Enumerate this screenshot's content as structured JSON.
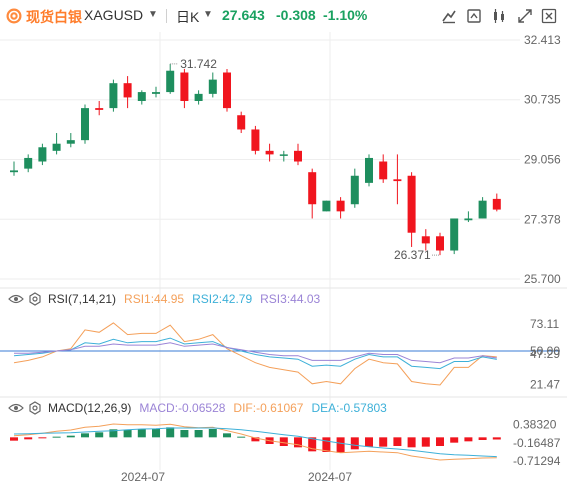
{
  "header": {
    "name": "现货白银",
    "symbol": "XAGUSD",
    "period": "日K",
    "price": "27.643",
    "change": "-0.308",
    "change_pct": "-1.10%"
  },
  "colors": {
    "up": "#f0151e",
    "down": "#1e8e5e",
    "accent": "#ff7d2b",
    "rsi1": "#f4a05a",
    "rsi2": "#3db0d8",
    "rsi3": "#9b84d6",
    "dif": "#f4a05a",
    "dea": "#3db0d8"
  },
  "toolbar": [
    "indicator-icon",
    "compare-icon",
    "draw-icon",
    "fullscreen-icon",
    "close-icon"
  ],
  "chart_data": {
    "type": "candlestick",
    "price_ticks": [
      "32.413",
      "30.735",
      "29.056",
      "27.378",
      "25.700"
    ],
    "ylim": [
      25.7,
      32.413
    ],
    "x_labels": [
      "2024-07",
      "2024-07"
    ],
    "annotations": {
      "high": "31.742",
      "low": "26.371"
    },
    "candles": [
      {
        "o": 28.7,
        "h": 29.0,
        "l": 28.6,
        "c": 28.75
      },
      {
        "o": 28.8,
        "h": 29.2,
        "l": 28.7,
        "c": 29.1
      },
      {
        "o": 29.0,
        "h": 29.5,
        "l": 28.9,
        "c": 29.4
      },
      {
        "o": 29.3,
        "h": 29.8,
        "l": 29.2,
        "c": 29.5
      },
      {
        "o": 29.5,
        "h": 29.8,
        "l": 29.4,
        "c": 29.6
      },
      {
        "o": 29.6,
        "h": 30.6,
        "l": 29.5,
        "c": 30.5
      },
      {
        "o": 30.5,
        "h": 30.7,
        "l": 30.3,
        "c": 30.45
      },
      {
        "o": 30.5,
        "h": 31.3,
        "l": 30.4,
        "c": 31.2
      },
      {
        "o": 31.2,
        "h": 31.4,
        "l": 30.5,
        "c": 30.8
      },
      {
        "o": 30.7,
        "h": 31.0,
        "l": 30.6,
        "c": 30.95
      },
      {
        "o": 30.9,
        "h": 31.1,
        "l": 30.8,
        "c": 30.95
      },
      {
        "o": 30.95,
        "h": 31.742,
        "l": 30.9,
        "c": 31.55
      },
      {
        "o": 31.5,
        "h": 31.6,
        "l": 30.5,
        "c": 30.7
      },
      {
        "o": 30.7,
        "h": 31.0,
        "l": 30.6,
        "c": 30.9
      },
      {
        "o": 30.9,
        "h": 31.5,
        "l": 30.8,
        "c": 31.3
      },
      {
        "o": 31.5,
        "h": 31.6,
        "l": 30.4,
        "c": 30.5
      },
      {
        "o": 30.3,
        "h": 30.4,
        "l": 29.8,
        "c": 29.9
      },
      {
        "o": 29.9,
        "h": 30.0,
        "l": 29.2,
        "c": 29.3
      },
      {
        "o": 29.3,
        "h": 29.5,
        "l": 29.0,
        "c": 29.2
      },
      {
        "o": 29.2,
        "h": 29.3,
        "l": 29.0,
        "c": 29.2
      },
      {
        "o": 29.3,
        "h": 29.5,
        "l": 28.9,
        "c": 29.0
      },
      {
        "o": 28.7,
        "h": 28.8,
        "l": 27.4,
        "c": 27.8
      },
      {
        "o": 27.6,
        "h": 27.9,
        "l": 27.6,
        "c": 27.9
      },
      {
        "o": 27.9,
        "h": 28.0,
        "l": 27.4,
        "c": 27.6
      },
      {
        "o": 27.8,
        "h": 28.8,
        "l": 27.7,
        "c": 28.6
      },
      {
        "o": 28.4,
        "h": 29.2,
        "l": 28.3,
        "c": 29.1
      },
      {
        "o": 29.0,
        "h": 29.2,
        "l": 28.4,
        "c": 28.5
      },
      {
        "o": 28.5,
        "h": 29.2,
        "l": 27.8,
        "c": 28.45
      },
      {
        "o": 28.6,
        "h": 28.7,
        "l": 26.6,
        "c": 27.0
      },
      {
        "o": 26.9,
        "h": 27.1,
        "l": 26.5,
        "c": 26.7
      },
      {
        "o": 26.9,
        "h": 27.0,
        "l": 26.371,
        "c": 26.5
      },
      {
        "o": 26.5,
        "h": 27.4,
        "l": 26.4,
        "c": 27.4
      },
      {
        "o": 27.35,
        "h": 27.6,
        "l": 27.3,
        "c": 27.4
      },
      {
        "o": 27.4,
        "h": 28.0,
        "l": 27.4,
        "c": 27.9
      },
      {
        "o": 27.95,
        "h": 28.1,
        "l": 27.6,
        "c": 27.65
      }
    ],
    "rsi": {
      "label": "RSI(7,14,21)",
      "rsi1_label": "RSI1:44.95",
      "rsi2_label": "RSI2:42.79",
      "rsi3_label": "RSI3:44.03",
      "ticks": [
        "73.11",
        "50.00",
        "47.29",
        "21.47"
      ],
      "ylim": [
        15,
        85
      ],
      "ref": 50,
      "rsi1": [
        40,
        42,
        45,
        50,
        52,
        68,
        66,
        74,
        64,
        65,
        65,
        72,
        58,
        60,
        64,
        52,
        46,
        40,
        36,
        34,
        32,
        22,
        24,
        22,
        35,
        43,
        40,
        39,
        24,
        22,
        21,
        36,
        36,
        46,
        44.95
      ],
      "rsi2": [
        46,
        47,
        48,
        50,
        51,
        57,
        56,
        60,
        57,
        58,
        58,
        61,
        56,
        57,
        58,
        53,
        50,
        47,
        45,
        44,
        43,
        37,
        38,
        37,
        43,
        47,
        45,
        45,
        37,
        36,
        35,
        41,
        41,
        45,
        42.79
      ],
      "rsi3": [
        48,
        48,
        49,
        50,
        51,
        54,
        54,
        56,
        55,
        55,
        55,
        57,
        54,
        55,
        56,
        53,
        51,
        49,
        47,
        46,
        46,
        42,
        42,
        42,
        45,
        48,
        47,
        47,
        42,
        41,
        40,
        44,
        44,
        46,
        44.03
      ]
    },
    "macd": {
      "label": "MACD(12,26,9)",
      "macd_label": "MACD:-0.06528",
      "dif_label": "DIF:-0.61067",
      "dea_label": "DEA:-0.57803",
      "ticks": [
        "0.38320",
        "-0.16487",
        "-0.71294"
      ],
      "ylim": [
        -0.86,
        0.52
      ],
      "hist": [
        -0.1,
        -0.06,
        -0.02,
        0.02,
        0.05,
        0.12,
        0.15,
        0.24,
        0.22,
        0.25,
        0.25,
        0.3,
        0.22,
        0.22,
        0.25,
        0.12,
        0.02,
        -0.12,
        -0.2,
        -0.26,
        -0.3,
        -0.42,
        -0.44,
        -0.46,
        -0.36,
        -0.28,
        -0.28,
        -0.26,
        -0.3,
        -0.28,
        -0.26,
        -0.16,
        -0.12,
        -0.08,
        -0.06528
      ],
      "dif": [
        0.05,
        0.08,
        0.12,
        0.18,
        0.22,
        0.3,
        0.33,
        0.4,
        0.38,
        0.38,
        0.36,
        0.39,
        0.32,
        0.29,
        0.3,
        0.2,
        0.1,
        -0.02,
        -0.1,
        -0.16,
        -0.22,
        -0.34,
        -0.4,
        -0.46,
        -0.44,
        -0.42,
        -0.44,
        -0.46,
        -0.56,
        -0.62,
        -0.68,
        -0.66,
        -0.64,
        -0.62,
        -0.61067
      ],
      "dea": [
        0.1,
        0.11,
        0.12,
        0.13,
        0.14,
        0.16,
        0.18,
        0.2,
        0.23,
        0.25,
        0.26,
        0.28,
        0.28,
        0.28,
        0.28,
        0.26,
        0.23,
        0.18,
        0.13,
        0.08,
        0.03,
        -0.04,
        -0.11,
        -0.18,
        -0.24,
        -0.28,
        -0.32,
        -0.35,
        -0.39,
        -0.44,
        -0.49,
        -0.52,
        -0.54,
        -0.56,
        -0.57803
      ]
    }
  }
}
